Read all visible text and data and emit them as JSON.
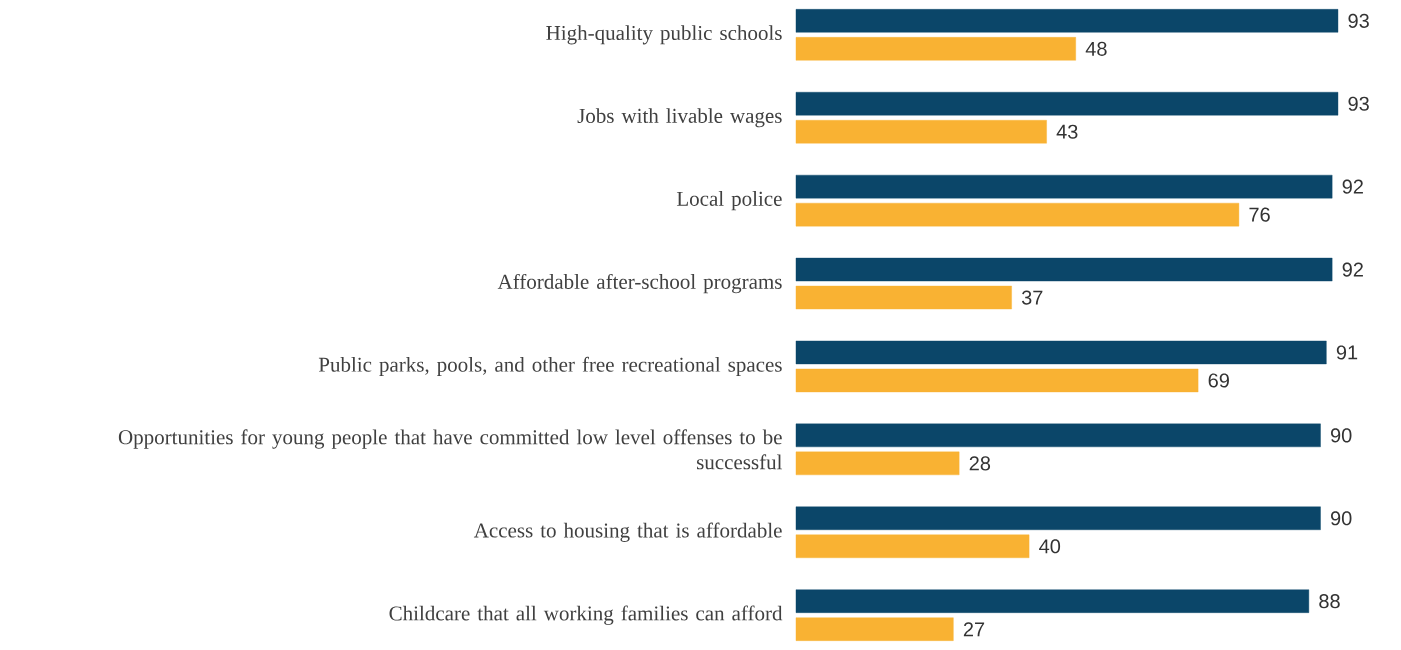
{
  "chart_data": {
    "type": "bar",
    "orientation": "horizontal",
    "data_labels": true,
    "categories": [
      "High-quality public schools",
      "Jobs with livable wages",
      "Local police",
      "Affordable after-school programs",
      "Public parks, pools, and other free recreational spaces",
      "Opportunities for young people that have committed low level offenses to be successful",
      "Access to housing that is affordable",
      "Childcare that all working families can afford"
    ],
    "series": [
      {
        "color": "#0b4669",
        "values": [
          93,
          93,
          92,
          92,
          91,
          90,
          90,
          88
        ]
      },
      {
        "color": "#f9b233",
        "values": [
          48,
          43,
          76,
          37,
          69,
          28,
          40,
          27
        ]
      }
    ]
  }
}
